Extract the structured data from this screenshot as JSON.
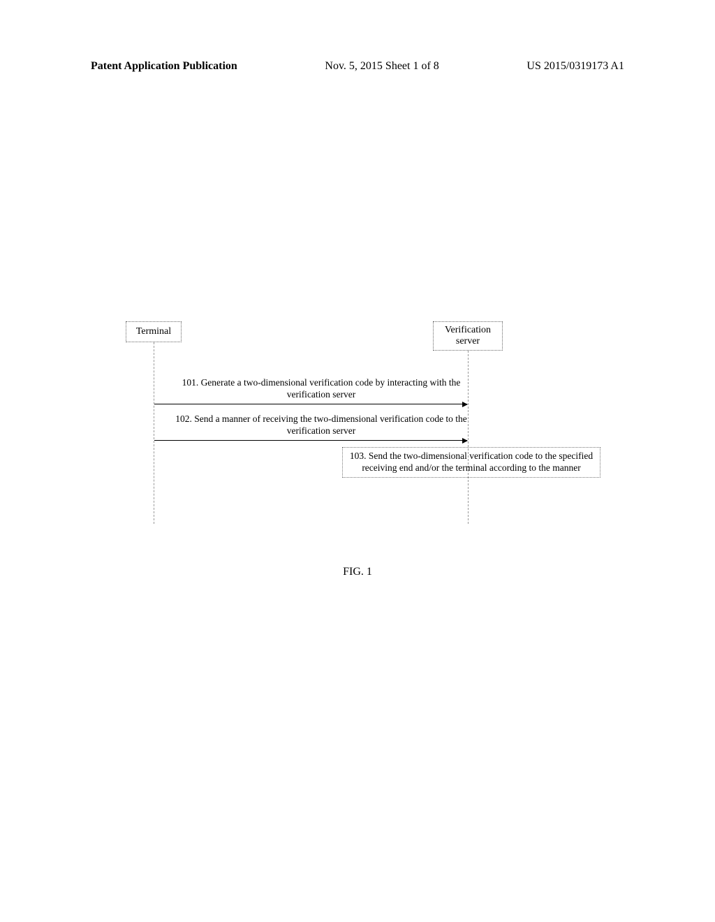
{
  "header": {
    "left": "Patent Application Publication",
    "middle": "Nov. 5, 2015   Sheet 1 of 8",
    "right": "US 2015/0319173 A1"
  },
  "diagram": {
    "type": "sequence",
    "background_color": "#ffffff",
    "actors": {
      "terminal": {
        "label": "Terminal",
        "border_style": "dotted",
        "border_color": "#666666"
      },
      "server": {
        "label": "Verification server",
        "border_style": "dotted",
        "border_color": "#666666"
      }
    },
    "lifeline_color": "#999999",
    "arrow_color": "#000000",
    "messages": [
      {
        "from": "terminal",
        "to": "server",
        "label": "101. Generate a two-dimensional verification code by interacting with the verification server"
      },
      {
        "from": "terminal",
        "to": "server",
        "label": "102. Send a manner of receiving the two-dimensional verification code to the verification server"
      }
    ],
    "process_note": {
      "at": "server",
      "label": "103. Send the two-dimensional verification code to the specified receiving end and/or the terminal according to the manner",
      "border_style": "dotted",
      "border_color": "#777777"
    },
    "label_fontsize": 13.5,
    "actor_fontsize": 14
  },
  "figure_caption": "FIG. 1"
}
